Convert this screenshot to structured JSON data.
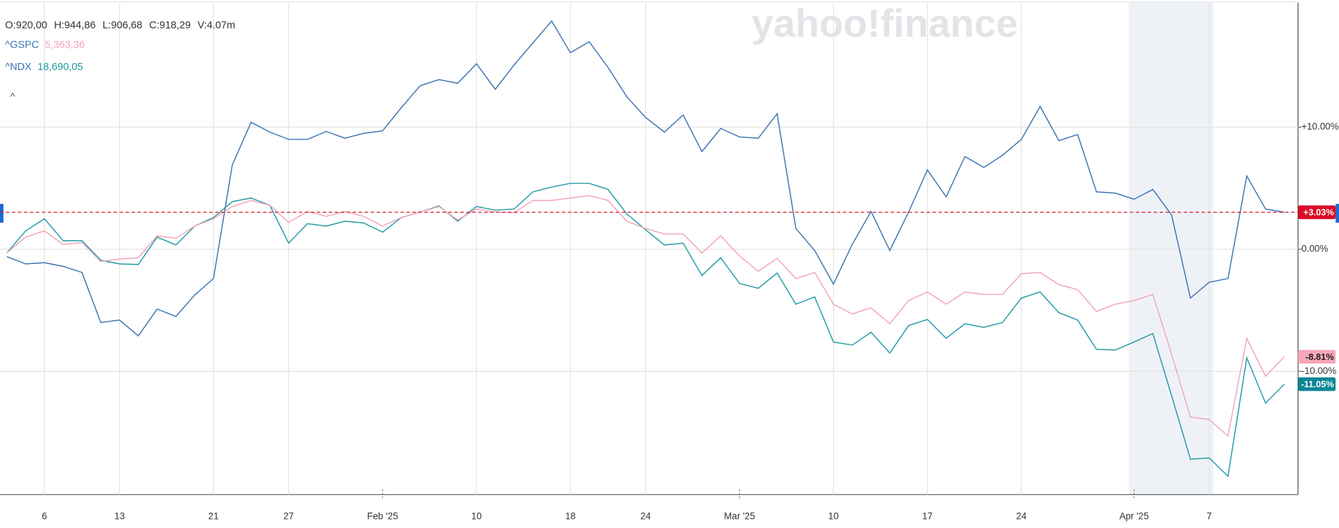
{
  "chart_data": {
    "type": "line",
    "watermark": "yahoo!finance",
    "ohlc": [
      "O:920,00",
      "H:944,86",
      "L:906,68",
      "C:918,29",
      "V:4.07m"
    ],
    "categories": [
      null,
      null,
      "6",
      null,
      null,
      null,
      "13",
      null,
      null,
      null,
      null,
      "21",
      null,
      null,
      null,
      "27",
      null,
      null,
      null,
      null,
      "Feb '25",
      null,
      null,
      null,
      null,
      "10",
      null,
      null,
      null,
      null,
      "18",
      null,
      null,
      null,
      "24",
      null,
      null,
      null,
      null,
      "Mar '25",
      null,
      null,
      null,
      null,
      "10",
      null,
      null,
      null,
      null,
      "17",
      null,
      null,
      null,
      null,
      "24",
      null,
      null,
      null,
      null,
      null,
      "Apr '25",
      null,
      null,
      null,
      "7",
      null,
      null,
      null,
      null
    ],
    "series": [
      {
        "color": "#3b73b1",
        "last_label": "+3.03%",
        "label_color": "#d90b25",
        "values": [
          -0.6,
          -1.2,
          -1.1,
          -1.4,
          -1.9,
          -6.0,
          -5.8,
          -7.1,
          -4.9,
          -5.5,
          -3.75,
          -2.4,
          6.9,
          10.4,
          9.6,
          9.0,
          9.0,
          9.65,
          9.1,
          9.5,
          9.7,
          11.6,
          13.4,
          13.9,
          13.6,
          15.2,
          13.1,
          15.1,
          16.9,
          18.7,
          16.1,
          17.0,
          14.9,
          12.5,
          10.8,
          9.6,
          11.0,
          8.0,
          9.9,
          9.2,
          9.1,
          11.1,
          1.7,
          -0.1,
          -2.85,
          0.4,
          3.1,
          -0.1,
          3.05,
          6.5,
          4.3,
          7.6,
          6.7,
          7.7,
          9.0,
          11.7,
          8.9,
          9.4,
          4.7,
          4.6,
          4.1,
          4.9,
          2.8,
          -4.0,
          -2.7,
          -2.4,
          6.0,
          3.3,
          3.03
        ]
      },
      {
        "name": "^GSPC",
        "quote": "5,363,36",
        "color": "#f2a3b6",
        "last_label": "-8.81%",
        "label_color": "#f5a7b8",
        "values": [
          -0.3,
          1.0,
          1.5,
          0.4,
          0.55,
          -1.0,
          -0.8,
          -0.7,
          1.1,
          0.9,
          1.9,
          2.5,
          3.5,
          4.0,
          3.6,
          2.2,
          3.1,
          2.7,
          3.1,
          2.7,
          1.9,
          2.6,
          3.05,
          3.5,
          2.4,
          3.3,
          3.05,
          3.0,
          4.0,
          4.0,
          4.2,
          4.4,
          4.0,
          2.3,
          1.7,
          1.25,
          1.25,
          -0.3,
          1.1,
          -0.55,
          -1.8,
          -0.75,
          -2.4,
          -1.9,
          -4.5,
          -5.3,
          -4.8,
          -6.1,
          -4.2,
          -3.5,
          -4.5,
          -3.5,
          -3.7,
          -3.7,
          -2.0,
          -1.9,
          -2.9,
          -3.3,
          -5.1,
          -4.5,
          -4.2,
          -3.7,
          -8.6,
          -13.75,
          -13.95,
          -15.3,
          -7.3,
          -10.4,
          -8.81
        ]
      },
      {
        "name": "^NDX",
        "quote": "18,690,05",
        "color": "#1f9aa5",
        "last_label": "-11.05%",
        "label_color": "#0e8795",
        "values": [
          -0.3,
          1.5,
          2.5,
          0.7,
          0.7,
          -0.9,
          -1.2,
          -1.25,
          1.0,
          0.35,
          1.9,
          2.6,
          3.9,
          4.2,
          3.6,
          0.5,
          2.1,
          1.9,
          2.3,
          2.15,
          1.4,
          2.6,
          3.05,
          3.55,
          2.3,
          3.5,
          3.2,
          3.3,
          4.7,
          5.1,
          5.4,
          5.4,
          4.9,
          2.9,
          1.6,
          0.35,
          0.5,
          -2.15,
          -0.7,
          -2.8,
          -3.2,
          -1.95,
          -4.5,
          -3.9,
          -7.6,
          -7.85,
          -6.8,
          -8.5,
          -6.25,
          -5.75,
          -7.3,
          -6.1,
          -6.4,
          -6.0,
          -4.0,
          -3.5,
          -5.2,
          -5.8,
          -8.2,
          -8.25,
          -7.6,
          -6.9,
          -12.0,
          -17.2,
          -17.1,
          -18.6,
          -8.9,
          -12.6,
          -11.05
        ]
      }
    ],
    "ylim": [
      -20.1,
      20.2
    ],
    "yticks": [
      {
        "value": 10,
        "label": "+10.00%"
      },
      {
        "value": 0,
        "label": "0.00%"
      },
      {
        "value": -10,
        "label": "-10.00%"
      }
    ],
    "grid": true
  }
}
